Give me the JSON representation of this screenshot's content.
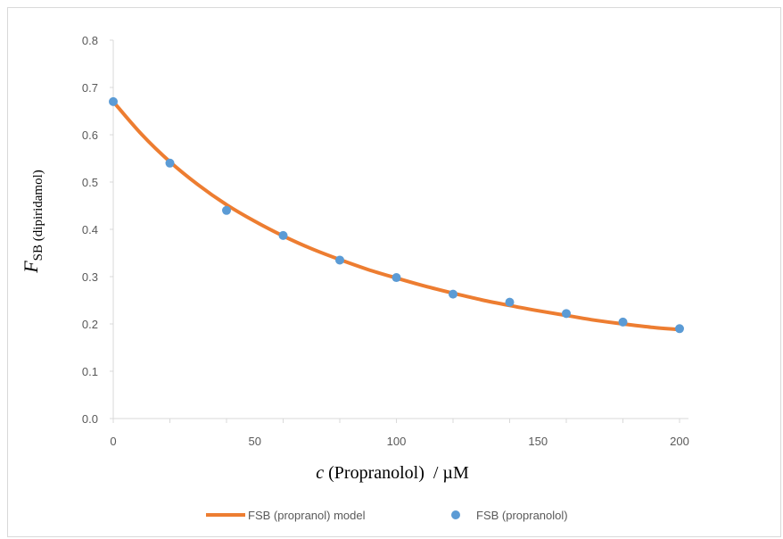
{
  "chart_data": {
    "type": "scatter",
    "x_ticks": [
      "0",
      "50",
      "100",
      "150",
      "200"
    ],
    "y_ticks": [
      "0.0",
      "0.1",
      "0.2",
      "0.3",
      "0.4",
      "0.5",
      "0.6",
      "0.7",
      "0.8"
    ],
    "xlim": [
      0,
      200
    ],
    "ylim": [
      0,
      0.8
    ],
    "xlabel": {
      "italic": "c",
      "rest": " (Propranolol)  / µM"
    },
    "ylabel": {
      "italic": "F",
      "subscript": "SB (dipiridamol)"
    },
    "grid": false,
    "legend_position": "bottom",
    "series": [
      {
        "name": "FSB (propranol) model",
        "kind": "line",
        "color": "#ED7D31",
        "x": [
          0,
          10,
          20,
          30,
          40,
          50,
          60,
          70,
          80,
          90,
          100,
          110,
          120,
          130,
          140,
          150,
          160,
          170,
          180,
          190,
          200
        ],
        "y": [
          0.67,
          0.601,
          0.543,
          0.494,
          0.452,
          0.417,
          0.386,
          0.359,
          0.336,
          0.315,
          0.297,
          0.28,
          0.265,
          0.251,
          0.239,
          0.228,
          0.218,
          0.208,
          0.2,
          0.193,
          0.188
        ]
      },
      {
        "name": "FSB (propranolol)",
        "kind": "scatter",
        "color": "#5B9BD5",
        "x": [
          0,
          20,
          40,
          60,
          80,
          100,
          120,
          140,
          160,
          180,
          200
        ],
        "y": [
          0.67,
          0.54,
          0.44,
          0.387,
          0.335,
          0.298,
          0.263,
          0.246,
          0.222,
          0.204,
          0.19
        ]
      }
    ]
  }
}
